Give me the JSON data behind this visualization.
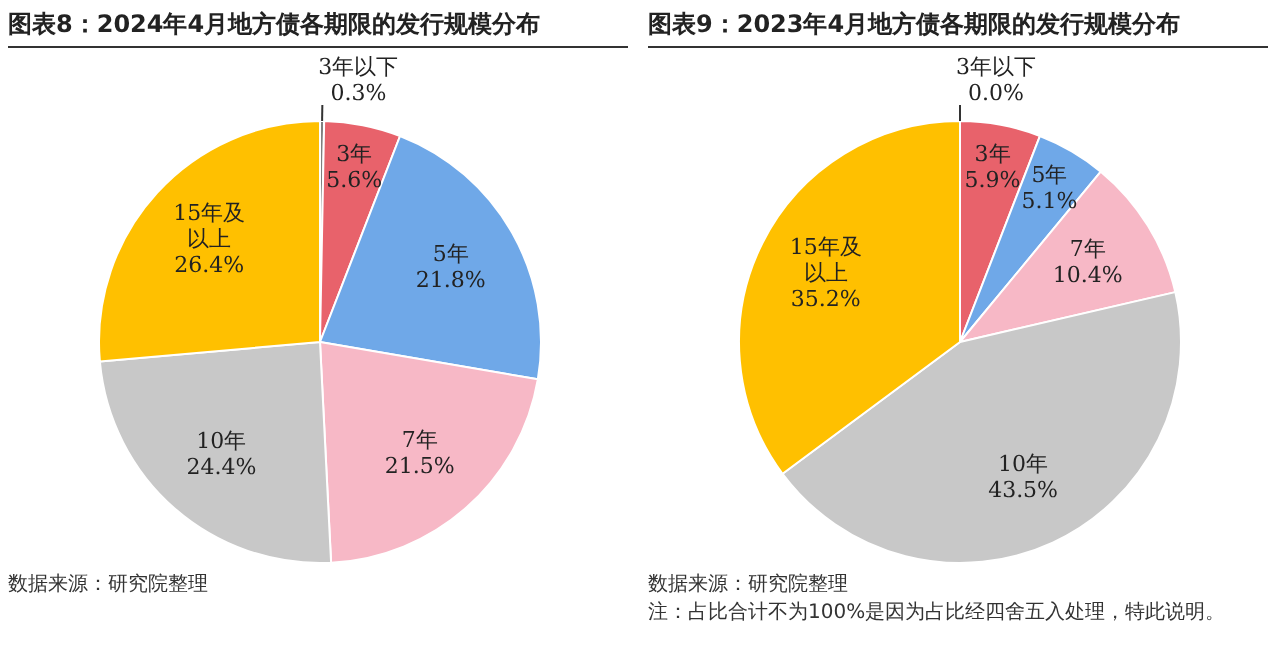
{
  "chart_data": [
    {
      "type": "pie",
      "title": "图表8：2024年4月地方债各期限的发行规模分布",
      "categories": [
        "3年以下",
        "3年",
        "5年",
        "7年",
        "10年",
        "15年及以上"
      ],
      "values": [
        0.3,
        5.6,
        21.8,
        21.5,
        24.4,
        26.4
      ],
      "colors": [
        "#7f7f7f",
        "#e8626b",
        "#6fa8e8",
        "#f7b8c6",
        "#c8c8c8",
        "#ffc000"
      ],
      "value_labels": [
        "0.3%",
        "5.6%",
        "21.8%",
        "21.5%",
        "24.4%",
        "26.4%"
      ],
      "legend": false,
      "annotations": [
        "数据来源：研究院整理"
      ]
    },
    {
      "type": "pie",
      "title": "图表9：2023年4月地方债各期限的发行规模分布",
      "categories": [
        "3年以下",
        "3年",
        "5年",
        "7年",
        "10年",
        "15年及以上"
      ],
      "values": [
        0.0,
        5.9,
        5.1,
        10.4,
        43.5,
        35.2
      ],
      "colors": [
        "#7f7f7f",
        "#e8626b",
        "#6fa8e8",
        "#f7b8c6",
        "#c8c8c8",
        "#ffc000"
      ],
      "value_labels": [
        "0.0%",
        "5.9%",
        "5.1%",
        "10.4%",
        "43.5%",
        "35.2%"
      ],
      "legend": false,
      "annotations": [
        "数据来源：研究院整理",
        "注：占比合计不为100%是因为占比经四舍五入处理，特此说明。"
      ]
    }
  ]
}
